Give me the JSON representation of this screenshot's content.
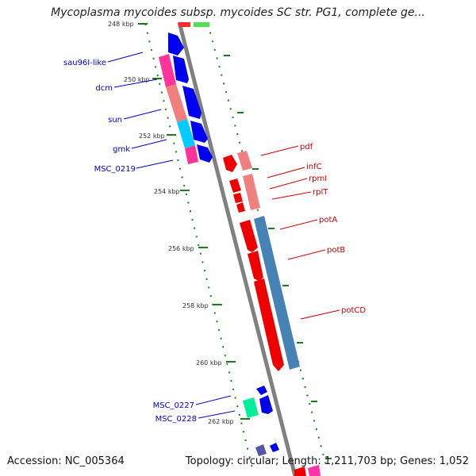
{
  "title": "Mycoplasma mycoides subsp. mycoides SC str. PG1, complete ge...",
  "footer": {
    "accession": "Accession: NC_005364",
    "info": "Topology: circular; Length: 1,211,703 bp; Genes: 1,052"
  },
  "colors": {
    "backbone": "#808080",
    "tick": "#1f7a1f",
    "left_label": "#0000cc",
    "right_label": "#cc0000"
  },
  "axis_ticks": [
    "248 kbp",
    "250 kbp",
    "252 kbp",
    "254 kbp",
    "256 kbp",
    "258 kbp",
    "260 kbp",
    "262 kbp"
  ],
  "left_labels": [
    "sau96I-like",
    "dcm",
    "sun",
    "gmk",
    "MSC_0219",
    "MSC_0227",
    "MSC_0228"
  ],
  "right_labels": [
    "pdf",
    "infC",
    "rpmI",
    "rplT",
    "potA",
    "potB",
    "potCD"
  ]
}
